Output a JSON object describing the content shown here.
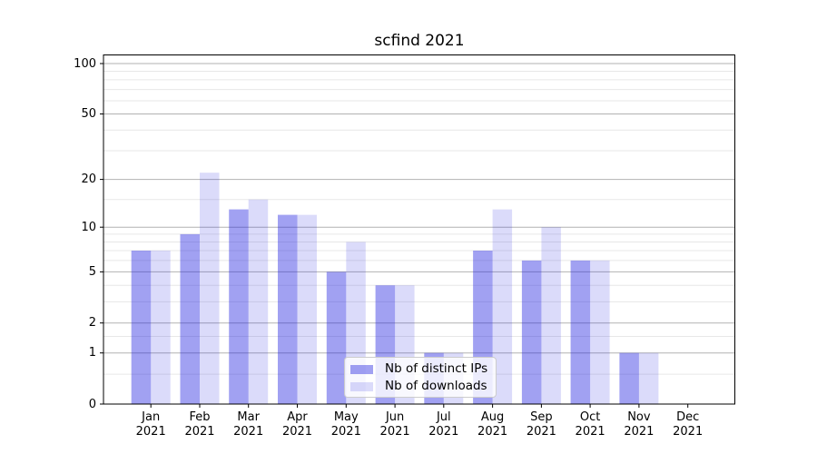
{
  "chart_data": {
    "type": "bar",
    "title": "scfind 2021",
    "year_label": "2021",
    "months": [
      "Jan",
      "Feb",
      "Mar",
      "Apr",
      "May",
      "Jun",
      "Jul",
      "Aug",
      "Sep",
      "Oct",
      "Nov",
      "Dec"
    ],
    "categories": [
      "Jan 2021",
      "Feb 2021",
      "Mar 2021",
      "Apr 2021",
      "May 2021",
      "Jun 2021",
      "Jul 2021",
      "Aug 2021",
      "Sep 2021",
      "Oct 2021",
      "Nov 2021",
      "Dec 2021"
    ],
    "series": [
      {
        "key": "distinct-ips",
        "name": "Nb of distinct IPs",
        "color": "rgba(30,30,225,0.42)",
        "values": [
          7,
          9,
          13,
          12,
          5,
          4,
          1,
          7,
          6,
          6,
          1,
          0
        ]
      },
      {
        "key": "downloads",
        "name": "Nb of downloads",
        "color": "rgba(30,30,225,0.16)",
        "values": [
          7,
          22,
          15,
          12,
          8,
          4,
          1,
          13,
          10,
          6,
          1,
          0
        ]
      }
    ],
    "xlabel": "",
    "ylabel": "",
    "yscale": "log10(value+1)",
    "ylim": [
      0,
      112
    ],
    "y_ticks": [
      0,
      1,
      2,
      5,
      10,
      20,
      50,
      100
    ],
    "y_tick_labels": [
      "0",
      "1",
      "2",
      "5",
      "10",
      "20",
      "50",
      "100"
    ],
    "y_minor_ticks": [
      0.5,
      1.5,
      3,
      4,
      6,
      7,
      8,
      9,
      15,
      30,
      40,
      60,
      70,
      80,
      90
    ],
    "grid": "on",
    "legend_position": "lower center",
    "colors": {
      "grid_major": "#b2b2b2",
      "grid_minor": "#e7e7e7",
      "axis": "#000000",
      "legend_border": "#cccccc",
      "legend_bg": "rgba(255,255,255,0.8)",
      "background": "#ffffff"
    }
  }
}
